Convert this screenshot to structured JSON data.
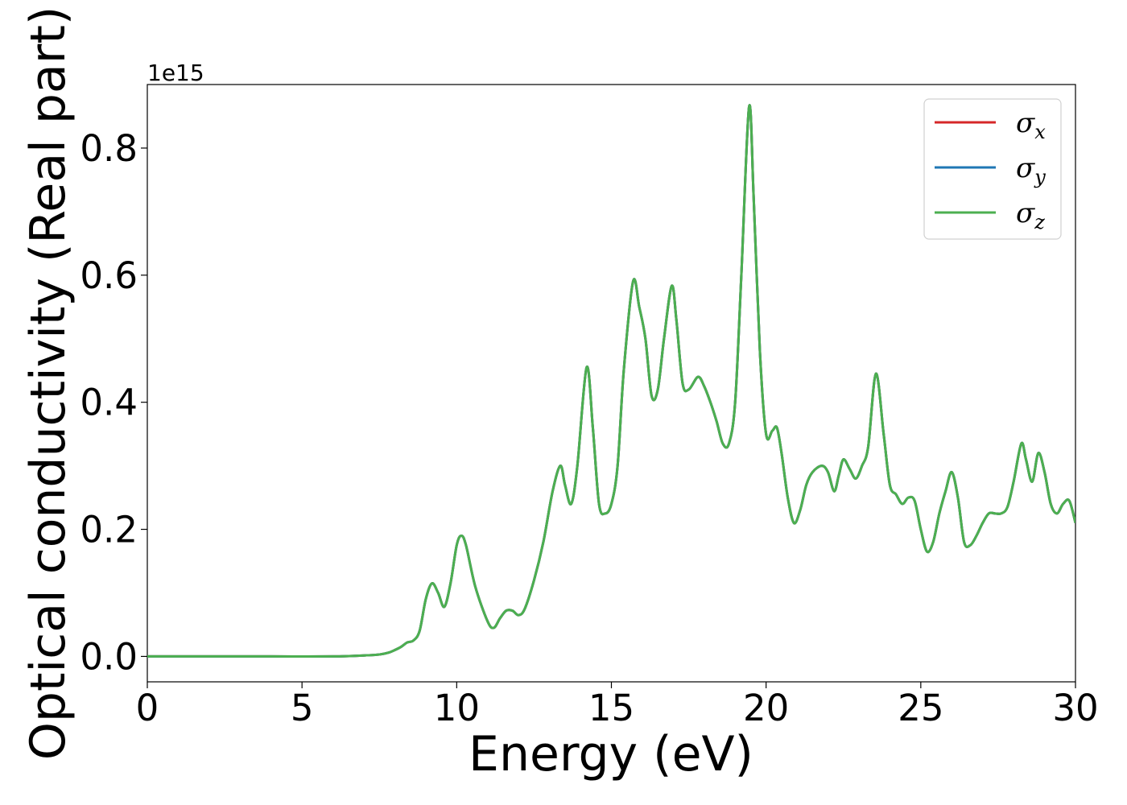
{
  "chart_data": {
    "type": "line",
    "xlabel": "Energy (eV)",
    "ylabel": "Optical conductivity (Real part)",
    "y_offset_text": "1e15",
    "xlim": [
      0,
      30
    ],
    "ylim": [
      -0.04,
      0.9
    ],
    "x_ticks": [
      0,
      5,
      10,
      15,
      20,
      25,
      30
    ],
    "x_tick_labels": [
      "0",
      "5",
      "10",
      "15",
      "20",
      "25",
      "30"
    ],
    "y_ticks": [
      0.0,
      0.2,
      0.4,
      0.6,
      0.8
    ],
    "y_tick_labels": [
      "0.0",
      "0.2",
      "0.4",
      "0.6",
      "0.8"
    ],
    "grid": false,
    "legend_position": "top-right",
    "series": [
      {
        "name": "σx",
        "symbol": "σ",
        "subscript": "x",
        "color": "#d62728"
      },
      {
        "name": "σy",
        "symbol": "σ",
        "subscript": "y",
        "color": "#1f77b4"
      },
      {
        "name": "σz",
        "symbol": "σ",
        "subscript": "z",
        "color": "#4caf50"
      }
    ],
    "x": [
      0,
      2,
      4,
      6,
      7,
      7.5,
      7.8,
      8.0,
      8.2,
      8.4,
      8.6,
      8.8,
      9.0,
      9.2,
      9.4,
      9.6,
      9.8,
      10.0,
      10.15,
      10.3,
      10.6,
      11.0,
      11.2,
      11.4,
      11.6,
      11.8,
      12.0,
      12.2,
      12.5,
      12.8,
      13.1,
      13.35,
      13.5,
      13.7,
      13.9,
      14.2,
      14.4,
      14.6,
      14.8,
      15.0,
      15.2,
      15.4,
      15.7,
      15.9,
      16.1,
      16.3,
      16.5,
      16.7,
      16.95,
      17.1,
      17.3,
      17.5,
      17.8,
      18.0,
      18.2,
      18.4,
      18.6,
      18.8,
      19.0,
      19.2,
      19.45,
      19.6,
      19.8,
      20.0,
      20.2,
      20.35,
      20.5,
      20.7,
      20.9,
      21.1,
      21.3,
      21.5,
      21.8,
      22.0,
      22.2,
      22.35,
      22.5,
      22.7,
      22.9,
      23.1,
      23.3,
      23.55,
      23.8,
      24.0,
      24.2,
      24.4,
      24.6,
      24.8,
      25.0,
      25.2,
      25.4,
      25.6,
      25.8,
      26.0,
      26.2,
      26.4,
      26.6,
      26.8,
      27.0,
      27.2,
      27.4,
      27.6,
      27.8,
      28.0,
      28.25,
      28.4,
      28.6,
      28.8,
      29.0,
      29.2,
      29.4,
      29.6,
      29.8,
      30.0
    ],
    "y": [
      0.0,
      0.0,
      0.0,
      0.0,
      0.0015,
      0.003,
      0.006,
      0.01,
      0.015,
      0.022,
      0.025,
      0.04,
      0.09,
      0.115,
      0.1,
      0.078,
      0.115,
      0.175,
      0.19,
      0.175,
      0.11,
      0.055,
      0.045,
      0.06,
      0.072,
      0.072,
      0.065,
      0.075,
      0.12,
      0.18,
      0.26,
      0.3,
      0.27,
      0.24,
      0.3,
      0.455,
      0.36,
      0.24,
      0.225,
      0.24,
      0.3,
      0.45,
      0.59,
      0.55,
      0.5,
      0.41,
      0.42,
      0.5,
      0.583,
      0.53,
      0.43,
      0.42,
      0.44,
      0.425,
      0.4,
      0.37,
      0.335,
      0.335,
      0.4,
      0.6,
      0.865,
      0.72,
      0.48,
      0.35,
      0.355,
      0.36,
      0.32,
      0.25,
      0.21,
      0.23,
      0.27,
      0.29,
      0.3,
      0.29,
      0.26,
      0.285,
      0.31,
      0.295,
      0.28,
      0.3,
      0.33,
      0.445,
      0.35,
      0.27,
      0.255,
      0.24,
      0.25,
      0.245,
      0.2,
      0.165,
      0.18,
      0.225,
      0.26,
      0.29,
      0.25,
      0.18,
      0.175,
      0.19,
      0.21,
      0.225,
      0.225,
      0.225,
      0.235,
      0.275,
      0.335,
      0.31,
      0.275,
      0.32,
      0.29,
      0.24,
      0.225,
      0.24,
      0.245,
      0.21
    ]
  }
}
